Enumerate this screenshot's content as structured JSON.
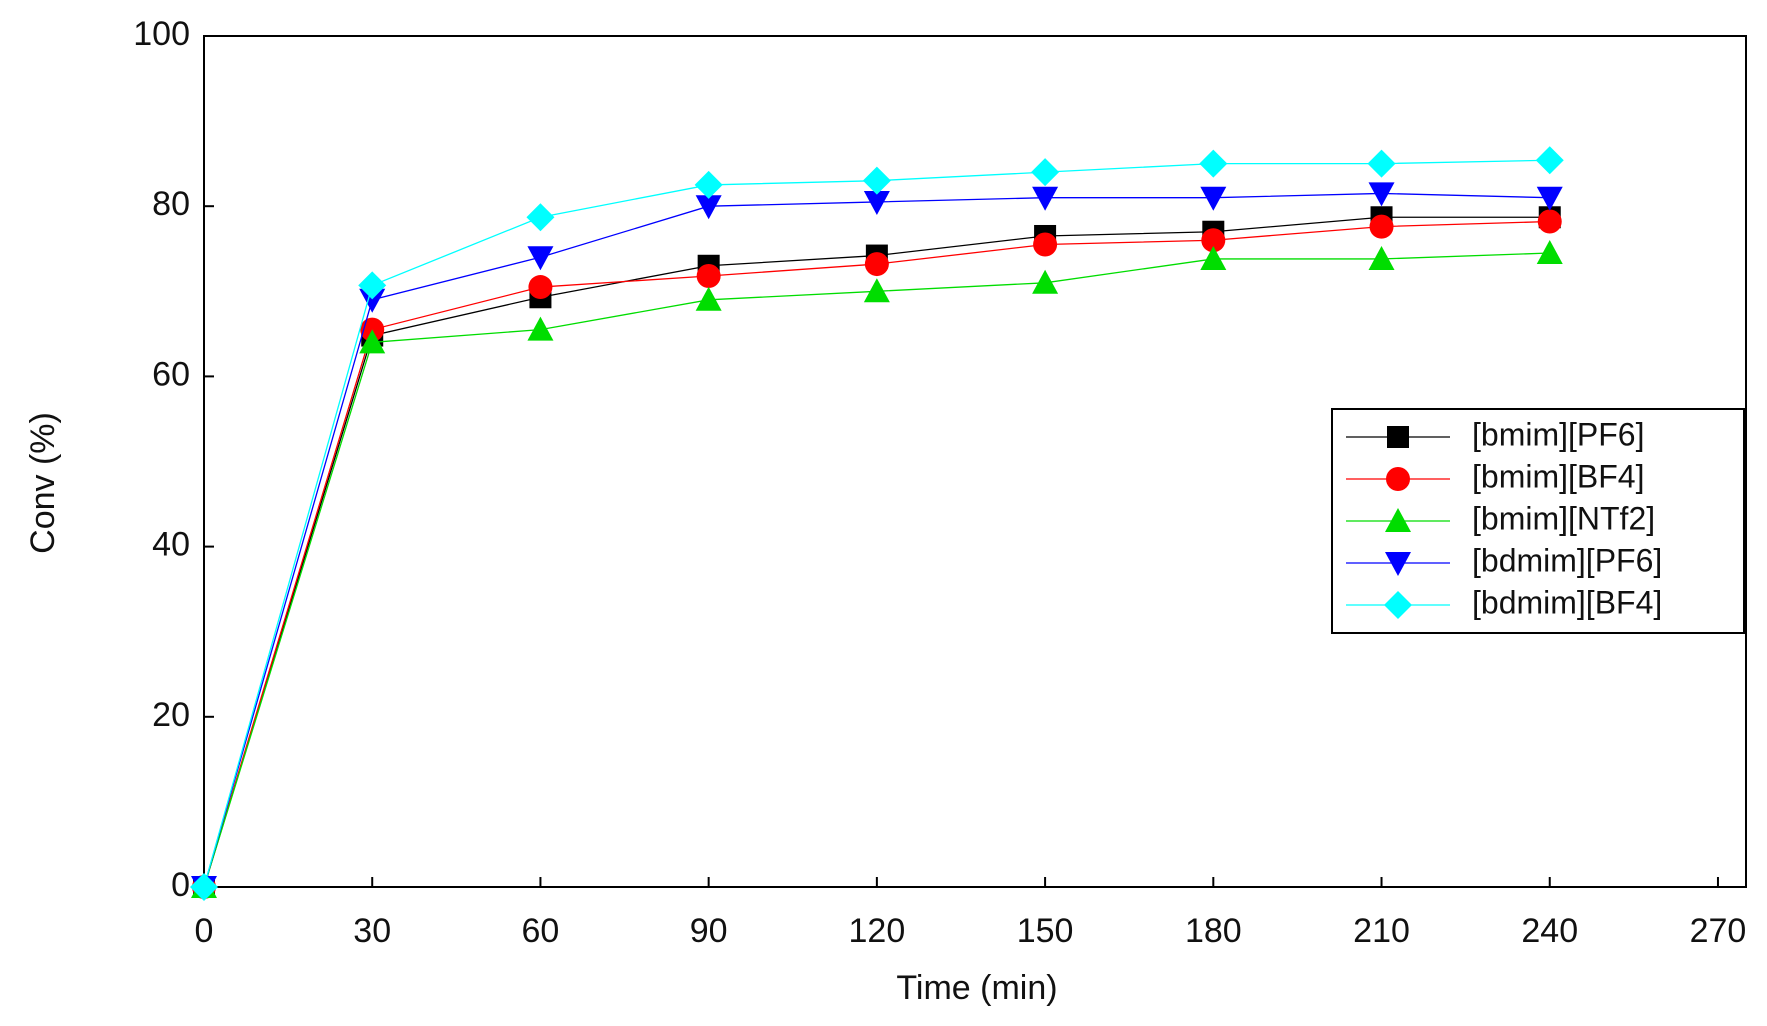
{
  "chart_data": {
    "type": "line",
    "x_label": "Time (min)",
    "y_label": "Conv (%)",
    "x": [
      0,
      30,
      60,
      90,
      120,
      150,
      180,
      210,
      240
    ],
    "series": [
      {
        "name": "[bmim][PF6]",
        "color": "#000000",
        "marker": "square",
        "values": [
          0,
          64.8,
          69.3,
          73,
          74.2,
          76.5,
          77,
          78.7,
          78.7
        ]
      },
      {
        "name": "[bmim][BF4]",
        "color": "#ff0000",
        "marker": "circle",
        "values": [
          0,
          65.5,
          70.5,
          71.8,
          73.2,
          75.5,
          76,
          77.6,
          78.2
        ]
      },
      {
        "name": "[bmim][NTf2]",
        "color": "#00dd00",
        "marker": "triangle-up",
        "values": [
          0,
          64,
          65.5,
          69,
          70,
          71,
          73.8,
          73.8,
          74.5
        ]
      },
      {
        "name": "[bdmim][PF6]",
        "color": "#0000ff",
        "marker": "triangle-down",
        "values": [
          0,
          69,
          74,
          80,
          80.5,
          81,
          81,
          81.5,
          81
        ]
      },
      {
        "name": "[bdmim][BF4]",
        "color": "#00ffff",
        "marker": "diamond",
        "values": [
          0,
          70.7,
          78.7,
          82.5,
          83,
          84,
          85,
          85,
          85.4
        ]
      }
    ],
    "xlim": [
      0,
      275
    ],
    "xticks": [
      0,
      30,
      60,
      90,
      120,
      150,
      180,
      210,
      240,
      270
    ],
    "ylim": [
      0,
      100
    ],
    "yticks": [
      0,
      20,
      40,
      60,
      80,
      100
    ],
    "legend": "right"
  }
}
